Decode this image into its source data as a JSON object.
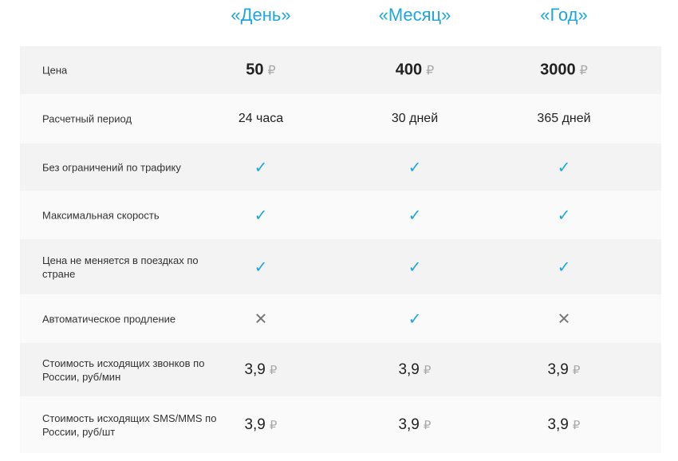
{
  "plans": [
    "«День»",
    "«Месяц»",
    "«Год»"
  ],
  "currency": "₽",
  "accent_color": "#1ea6de",
  "rows": [
    {
      "label": "Цена",
      "type": "price",
      "values": [
        "50",
        "400",
        "3000"
      ]
    },
    {
      "label": "Расчетный период",
      "type": "text",
      "values": [
        "24 часа",
        "30 дней",
        "365 дней"
      ]
    },
    {
      "label": "Без ограничений по трафику",
      "type": "bool",
      "values": [
        true,
        true,
        true
      ]
    },
    {
      "label": "Максимальная скорость",
      "type": "bool",
      "values": [
        true,
        true,
        true
      ]
    },
    {
      "label": "Цена не меняется в поездках по стране",
      "type": "bool",
      "values": [
        true,
        true,
        true
      ]
    },
    {
      "label": "Автоматическое продление",
      "type": "bool",
      "values": [
        false,
        true,
        false
      ]
    },
    {
      "label": "Стоимость исходящих звонков по России, руб/мин",
      "type": "small",
      "values": [
        "3,9",
        "3,9",
        "3,9"
      ]
    },
    {
      "label": "Стоимость исходящих SMS/MMS по России, руб/шт",
      "type": "small",
      "values": [
        "3,9",
        "3,9",
        "3,9"
      ]
    }
  ]
}
